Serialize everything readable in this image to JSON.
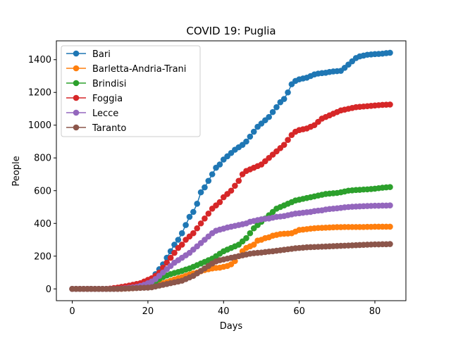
{
  "chart_data": {
    "type": "line",
    "title": "COVID 19: Puglia",
    "xlabel": "Days",
    "ylabel": "People",
    "xlim": [
      -4.2,
      88.2
    ],
    "ylim": [
      -72,
      1515
    ],
    "xticks": [
      0,
      20,
      40,
      60,
      80
    ],
    "yticks": [
      0,
      200,
      400,
      600,
      800,
      1000,
      1200,
      1400
    ],
    "grid": false,
    "legend_position": "top-left",
    "x": [
      0,
      1,
      2,
      3,
      4,
      5,
      6,
      7,
      8,
      9,
      10,
      11,
      12,
      13,
      14,
      15,
      16,
      17,
      18,
      19,
      20,
      21,
      22,
      23,
      24,
      25,
      26,
      27,
      28,
      29,
      30,
      31,
      32,
      33,
      34,
      35,
      36,
      37,
      38,
      39,
      40,
      41,
      42,
      43,
      44,
      45,
      46,
      47,
      48,
      49,
      50,
      51,
      52,
      53,
      54,
      55,
      56,
      57,
      58,
      59,
      60,
      61,
      62,
      63,
      64,
      65,
      66,
      67,
      68,
      69,
      70,
      71,
      72,
      73,
      74,
      75,
      76,
      77,
      78,
      79,
      80,
      81,
      82,
      83,
      84
    ],
    "series": [
      {
        "name": "Bari",
        "color": "#1f77b4",
        "values": [
          0,
          0,
          0,
          0,
          0,
          0,
          0,
          0,
          0,
          0,
          0,
          1,
          2,
          4,
          6,
          8,
          10,
          15,
          20,
          25,
          35,
          55,
          90,
          120,
          150,
          190,
          230,
          270,
          300,
          340,
          390,
          440,
          470,
          520,
          590,
          620,
          660,
          700,
          740,
          760,
          790,
          810,
          830,
          850,
          865,
          880,
          900,
          930,
          960,
          990,
          1010,
          1030,
          1050,
          1080,
          1110,
          1140,
          1160,
          1200,
          1250,
          1270,
          1280,
          1285,
          1290,
          1300,
          1310,
          1315,
          1318,
          1320,
          1325,
          1328,
          1330,
          1332,
          1350,
          1370,
          1390,
          1410,
          1420,
          1425,
          1430,
          1432,
          1434,
          1435,
          1437,
          1440,
          1442
        ]
      },
      {
        "name": "Barletta-Andria-Trani",
        "color": "#ff7f0e",
        "values": [
          0,
          0,
          0,
          0,
          0,
          0,
          0,
          0,
          0,
          0,
          0,
          0,
          0,
          1,
          2,
          3,
          4,
          6,
          8,
          10,
          14,
          18,
          22,
          28,
          35,
          42,
          50,
          58,
          65,
          72,
          80,
          88,
          95,
          100,
          108,
          115,
          120,
          125,
          128,
          130,
          135,
          140,
          150,
          170,
          200,
          230,
          250,
          260,
          270,
          295,
          300,
          310,
          315,
          325,
          330,
          335,
          337,
          338,
          340,
          350,
          360,
          362,
          365,
          368,
          370,
          372,
          373,
          374,
          375,
          376,
          377,
          377,
          378,
          378,
          378,
          378,
          378,
          378,
          379,
          379,
          380,
          380,
          380,
          380,
          380
        ]
      },
      {
        "name": "Brindisi",
        "color": "#2ca02c",
        "values": [
          0,
          0,
          0,
          0,
          0,
          0,
          0,
          0,
          0,
          0,
          0,
          1,
          2,
          3,
          4,
          5,
          7,
          9,
          12,
          15,
          20,
          30,
          45,
          60,
          72,
          82,
          90,
          97,
          103,
          110,
          118,
          125,
          135,
          145,
          155,
          165,
          175,
          185,
          200,
          215,
          230,
          240,
          250,
          260,
          270,
          290,
          310,
          340,
          370,
          390,
          410,
          430,
          450,
          470,
          490,
          500,
          510,
          520,
          530,
          540,
          545,
          550,
          555,
          560,
          565,
          570,
          575,
          580,
          582,
          584,
          586,
          590,
          595,
          600,
          602,
          604,
          605,
          607,
          608,
          610,
          612,
          615,
          618,
          620,
          622
        ]
      },
      {
        "name": "Foggia",
        "color": "#d62728",
        "values": [
          0,
          0,
          0,
          0,
          0,
          0,
          0,
          0,
          0,
          0,
          2,
          5,
          8,
          12,
          16,
          20,
          25,
          30,
          35,
          45,
          55,
          65,
          80,
          100,
          130,
          160,
          190,
          220,
          250,
          270,
          300,
          320,
          340,
          370,
          400,
          430,
          460,
          490,
          510,
          530,
          560,
          580,
          600,
          630,
          660,
          700,
          720,
          730,
          740,
          750,
          760,
          780,
          800,
          820,
          840,
          860,
          880,
          910,
          940,
          960,
          970,
          975,
          980,
          990,
          1000,
          1020,
          1040,
          1050,
          1060,
          1070,
          1080,
          1090,
          1095,
          1100,
          1105,
          1110,
          1112,
          1114,
          1116,
          1118,
          1120,
          1122,
          1124,
          1125,
          1126
        ]
      },
      {
        "name": "Lecce",
        "color": "#9467bd",
        "values": [
          0,
          0,
          0,
          0,
          0,
          0,
          0,
          0,
          0,
          0,
          0,
          0,
          0,
          2,
          4,
          6,
          9,
          12,
          18,
          25,
          35,
          45,
          60,
          80,
          100,
          120,
          140,
          160,
          175,
          190,
          205,
          220,
          240,
          260,
          280,
          300,
          320,
          340,
          355,
          362,
          368,
          375,
          380,
          385,
          390,
          395,
          400,
          410,
          415,
          420,
          425,
          428,
          430,
          435,
          440,
          442,
          445,
          450,
          455,
          460,
          462,
          465,
          468,
          470,
          475,
          478,
          480,
          485,
          488,
          490,
          492,
          495,
          498,
          500,
          502,
          503,
          504,
          505,
          506,
          507,
          508,
          508,
          509,
          509,
          510
        ]
      },
      {
        "name": "Taranto",
        "color": "#8c564b",
        "values": [
          0,
          0,
          0,
          0,
          0,
          0,
          0,
          0,
          0,
          0,
          0,
          0,
          0,
          1,
          2,
          3,
          4,
          5,
          6,
          7,
          8,
          10,
          15,
          20,
          25,
          30,
          35,
          40,
          45,
          50,
          60,
          70,
          80,
          95,
          110,
          125,
          140,
          155,
          168,
          175,
          180,
          185,
          190,
          195,
          200,
          205,
          210,
          215,
          218,
          220,
          222,
          225,
          228,
          230,
          233,
          236,
          239,
          242,
          245,
          248,
          250,
          252,
          254,
          255,
          256,
          257,
          258,
          259,
          260,
          261,
          262,
          263,
          264,
          265,
          266,
          267,
          268,
          269,
          270,
          271,
          272,
          272,
          273,
          273,
          274
        ]
      }
    ]
  }
}
